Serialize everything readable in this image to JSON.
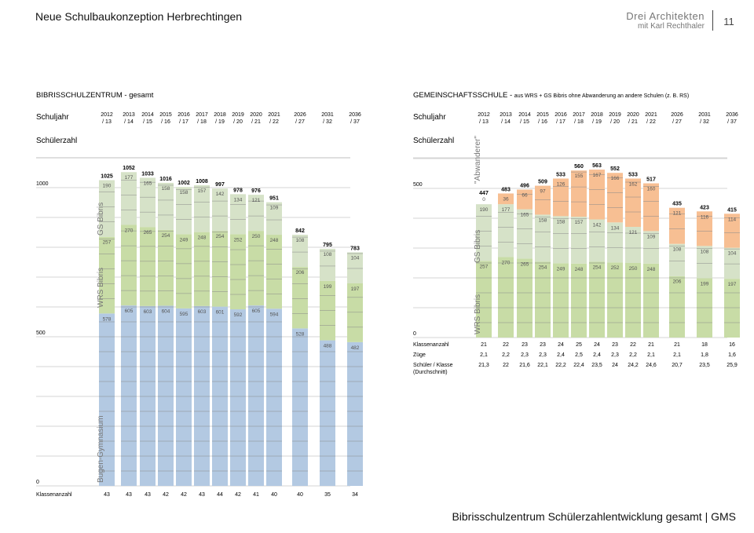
{
  "header": {
    "title": "Neue Schulbaukonzeption Herbrechtingen",
    "firm_name": "Drei Architekten",
    "firm_sub": "mit  Karl Rechthaler",
    "page_number": "11"
  },
  "footer": {
    "caption": "Bibrisschulzentrum Schülerzahlentwicklung gesamt  |  GMS"
  },
  "colors": {
    "green": "#c8dca6",
    "green_light": "#d6e2c8",
    "blue": "#b3c9e2",
    "orange": "#f7bf93",
    "line": "#999999"
  },
  "chart_data": [
    {
      "type": "bar",
      "stacked": true,
      "title": "BIBRISSCHULZENTRUM - gesamt",
      "row_label_year": "Schuljahr",
      "row_label_count": "Schülerzahl",
      "categories": [
        [
          "2012",
          "/ 13"
        ],
        [
          "2013",
          "/ 14"
        ],
        [
          "2014",
          "/ 15"
        ],
        [
          "2015",
          "/ 16"
        ],
        [
          "2016",
          "/ 17"
        ],
        [
          "2017",
          "/ 18"
        ],
        [
          "2018",
          "/ 19"
        ],
        [
          "2019",
          "/ 20"
        ],
        [
          "2020",
          "/ 21"
        ],
        [
          "2021",
          "/ 22"
        ],
        [
          "2026",
          "/ 27"
        ],
        [
          "2031",
          "/ 32"
        ],
        [
          "2036",
          "/ 37"
        ]
      ],
      "ylim": [
        0,
        1100
      ],
      "yticks": [
        "0",
        "500",
        "1000"
      ],
      "series": [
        {
          "name": "Bugen-Gymnasium",
          "color": "#b3c9e2",
          "values": [
            578,
            605,
            603,
            604,
            595,
            603,
            601,
            592,
            605,
            594,
            528,
            488,
            482
          ]
        },
        {
          "name": "WRS Bibris",
          "color": "#c8dca6",
          "values": [
            257,
            270,
            265,
            254,
            249,
            248,
            254,
            252,
            250,
            248,
            206,
            199,
            197
          ]
        },
        {
          "name": "GS Bibris",
          "color": "#d6e2c8",
          "values": [
            190,
            177,
            165,
            158,
            158,
            157,
            142,
            134,
            121,
            109,
            108,
            108,
            104
          ]
        }
      ],
      "totals": [
        1025,
        1052,
        1033,
        1016,
        1002,
        1008,
        997,
        978,
        976,
        951,
        842,
        795,
        783
      ],
      "table_rows": [
        {
          "label": "Klassenanzahl",
          "values": [
            "43",
            "43",
            "43",
            "42",
            "42",
            "43",
            "44",
            "42",
            "41",
            "40",
            "40",
            "35",
            "34"
          ]
        }
      ]
    },
    {
      "type": "bar",
      "stacked": true,
      "title": "GEMEINSCHAFTSSCHULE - ",
      "title_note": "aus WRS + GS Bibris ohne Abwanderung an andere Schulen (z. B. RS)",
      "row_label_year": "Schuljahr",
      "row_label_count": "Schülerzahl",
      "categories": [
        [
          "2012",
          "/ 13"
        ],
        [
          "2013",
          "/ 14"
        ],
        [
          "2014",
          "/ 15"
        ],
        [
          "2015",
          "/ 16"
        ],
        [
          "2016",
          "/ 17"
        ],
        [
          "2017",
          "/ 18"
        ],
        [
          "2018",
          "/ 19"
        ],
        [
          "2019",
          "/ 20"
        ],
        [
          "2020",
          "/ 21"
        ],
        [
          "2021",
          "/ 22"
        ],
        [
          "2026",
          "/ 27"
        ],
        [
          "2031",
          "/ 32"
        ],
        [
          "2036",
          "/ 37"
        ]
      ],
      "ylim": [
        0,
        600
      ],
      "yticks": [
        "0",
        "500"
      ],
      "series": [
        {
          "name": "WRS Bibris",
          "color": "#c8dca6",
          "values": [
            257,
            270,
            265,
            254,
            249,
            248,
            254,
            252,
            250,
            248,
            206,
            199,
            197
          ]
        },
        {
          "name": "GS Bibris",
          "color": "#d6e2c8",
          "values": [
            190,
            177,
            165,
            158,
            158,
            157,
            142,
            134,
            121,
            109,
            108,
            108,
            104
          ]
        },
        {
          "name": "\"Abwanderer\"",
          "color": "#f7bf93",
          "values": [
            0,
            36,
            66,
            97,
            126,
            155,
            167,
            166,
            162,
            160,
            121,
            116,
            114
          ]
        }
      ],
      "totals": [
        447,
        483,
        496,
        509,
        533,
        560,
        563,
        552,
        533,
        517,
        435,
        423,
        415
      ],
      "table_rows": [
        {
          "label": "Klassenanzahl",
          "values": [
            "21",
            "22",
            "23",
            "23",
            "24",
            "25",
            "24",
            "23",
            "22",
            "21",
            "21",
            "18",
            "16"
          ]
        },
        {
          "label": "Züge",
          "values": [
            "2,1",
            "2,2",
            "2,3",
            "2,3",
            "2,4",
            "2,5",
            "2,4",
            "2,3",
            "2,2",
            "2,1",
            "2,1",
            "1,8",
            "1,6"
          ]
        },
        {
          "label": "Schüler / Klasse",
          "label2": "(Durchschnitt)",
          "values": [
            "21,3",
            "22",
            "21,6",
            "22,1",
            "22,2",
            "22,4",
            "23,5",
            "24",
            "24,2",
            "24,6",
            "20,7",
            "23,5",
            "25,9"
          ]
        }
      ]
    }
  ]
}
